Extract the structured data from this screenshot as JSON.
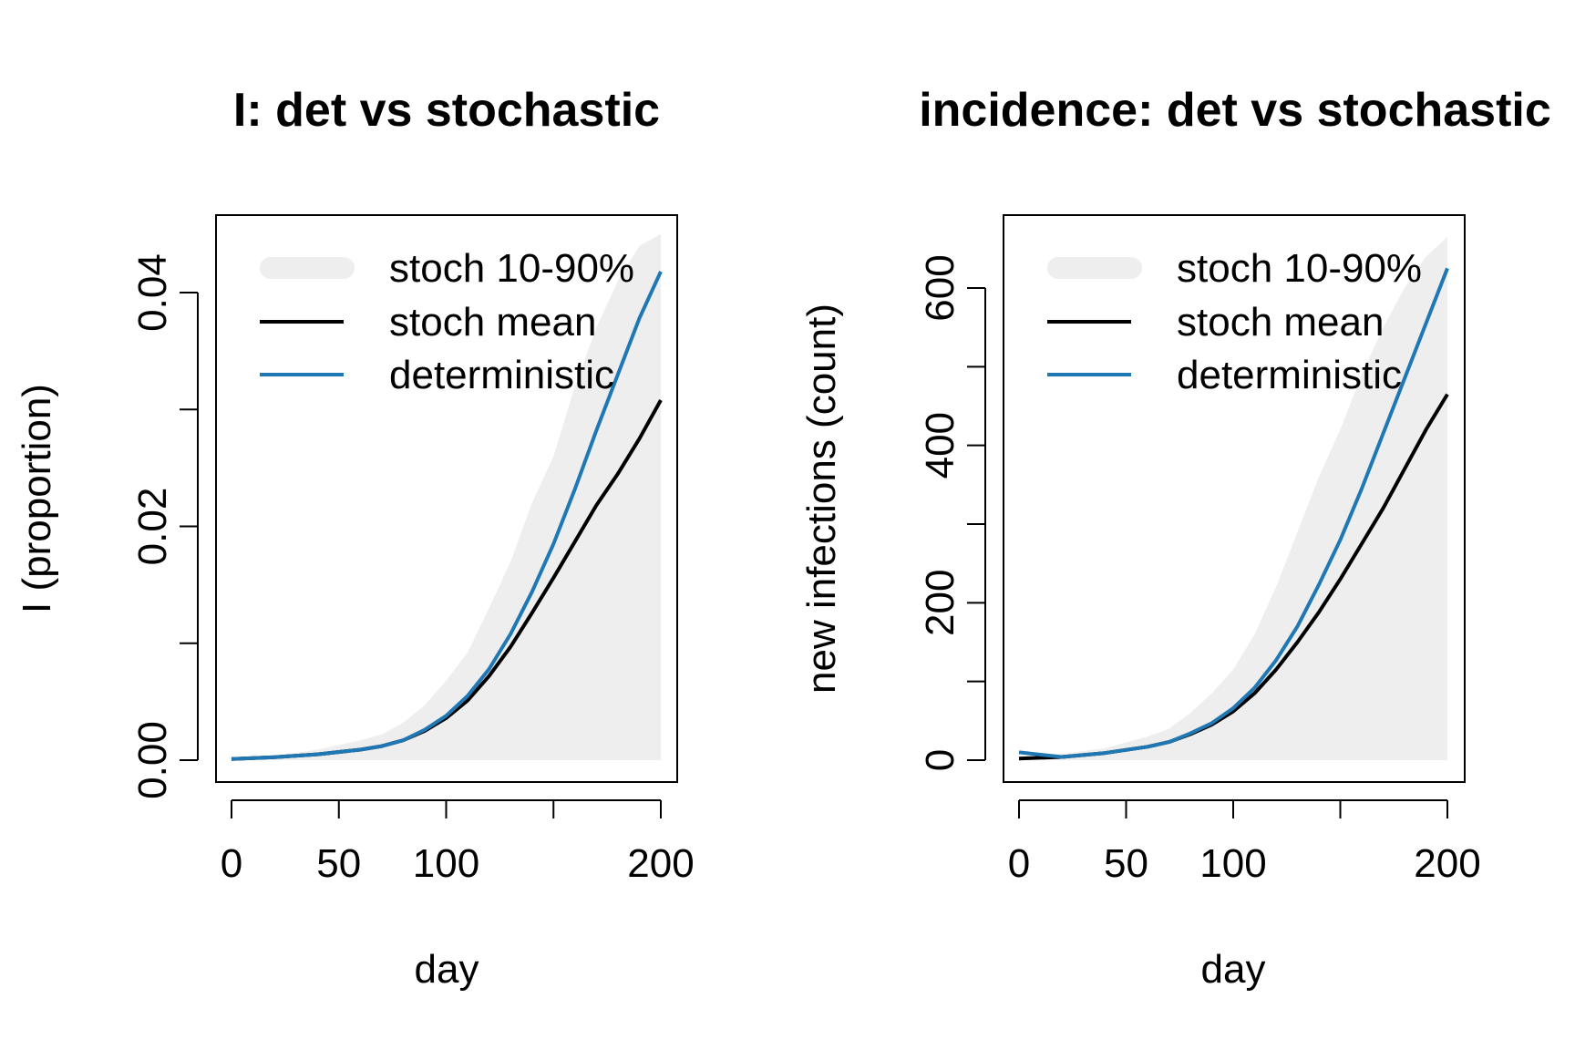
{
  "colors": {
    "band": "#eeeeee",
    "mean": "#000000",
    "deterministic": "#1f78b4",
    "axis": "#000000"
  },
  "chart_data": [
    {
      "type": "line",
      "title": "I: det vs stochastic",
      "xlabel": "day",
      "ylabel": "I (proportion)",
      "xlim": [
        0,
        200
      ],
      "ylim": [
        0,
        0.045
      ],
      "x_ticks": [
        0,
        50,
        100,
        150,
        200
      ],
      "x_tick_labels": [
        "0",
        "50",
        "100",
        "",
        "200"
      ],
      "y_ticks": [
        0,
        0.01,
        0.02,
        0.03,
        0.04
      ],
      "y_tick_labels": [
        "0.00",
        "",
        "0.02",
        "",
        "0.04"
      ],
      "legend_position": "top-right",
      "legend_entries": [
        "stoch 10-90%",
        "stoch mean",
        "deterministic"
      ],
      "x": [
        0,
        20,
        40,
        60,
        70,
        80,
        90,
        100,
        110,
        120,
        130,
        140,
        150,
        160,
        170,
        180,
        190,
        200
      ],
      "series": [
        {
          "name": "stoch 10-90%",
          "kind": "band",
          "lower": [
            0,
            0,
            0,
            0,
            0,
            0,
            0,
            0,
            0,
            0,
            0,
            0,
            0,
            0,
            0,
            0,
            0,
            0
          ],
          "upper": [
            0.0001,
            0.0004,
            0.0009,
            0.0017,
            0.0022,
            0.0032,
            0.0047,
            0.0068,
            0.0092,
            0.013,
            0.017,
            0.022,
            0.026,
            0.032,
            0.037,
            0.041,
            0.044,
            0.045
          ]
        },
        {
          "name": "stoch mean",
          "kind": "line",
          "values": [
            0.0001,
            0.00025,
            0.0005,
            0.0009,
            0.0012,
            0.0017,
            0.0025,
            0.0036,
            0.0051,
            0.0072,
            0.0097,
            0.0126,
            0.0156,
            0.0187,
            0.0218,
            0.0245,
            0.0275,
            0.0308
          ]
        },
        {
          "name": "deterministic",
          "kind": "line",
          "values": [
            0.0001,
            0.00025,
            0.0005,
            0.0009,
            0.0012,
            0.0017,
            0.0026,
            0.0038,
            0.0055,
            0.0078,
            0.0108,
            0.0144,
            0.0185,
            0.0232,
            0.0282,
            0.033,
            0.0378,
            0.0418
          ]
        }
      ]
    },
    {
      "type": "line",
      "title": "incidence: det vs stochastic",
      "xlabel": "day",
      "ylabel": "new infections (count)",
      "xlim": [
        0,
        200
      ],
      "ylim": [
        0,
        660
      ],
      "x_ticks": [
        0,
        50,
        100,
        150,
        200
      ],
      "x_tick_labels": [
        "0",
        "50",
        "100",
        "",
        "200"
      ],
      "y_ticks": [
        0,
        100,
        200,
        300,
        400,
        500,
        600
      ],
      "y_tick_labels": [
        "0",
        "",
        "200",
        "",
        "400",
        "",
        "600"
      ],
      "legend_position": "top-right",
      "legend_entries": [
        "stoch 10-90%",
        "stoch mean",
        "deterministic"
      ],
      "x": [
        0,
        20,
        40,
        60,
        70,
        80,
        90,
        100,
        110,
        120,
        130,
        140,
        150,
        160,
        170,
        180,
        190,
        200
      ],
      "series": [
        {
          "name": "stoch 10-90%",
          "kind": "band",
          "lower": [
            0,
            0,
            0,
            0,
            0,
            0,
            0,
            0,
            0,
            0,
            0,
            0,
            0,
            0,
            0,
            0,
            0,
            0
          ],
          "upper": [
            5,
            8,
            15,
            30,
            40,
            60,
            85,
            115,
            160,
            220,
            290,
            360,
            420,
            490,
            550,
            600,
            640,
            665
          ]
        },
        {
          "name": "stoch mean",
          "kind": "line",
          "values": [
            2,
            4,
            9,
            17,
            23,
            33,
            45,
            62,
            85,
            115,
            150,
            188,
            230,
            275,
            320,
            370,
            420,
            465
          ]
        },
        {
          "name": "deterministic",
          "kind": "line",
          "values": [
            10,
            4,
            9,
            17,
            23,
            34,
            47,
            66,
            92,
            127,
            170,
            223,
            280,
            345,
            415,
            485,
            555,
            625
          ]
        }
      ]
    }
  ]
}
